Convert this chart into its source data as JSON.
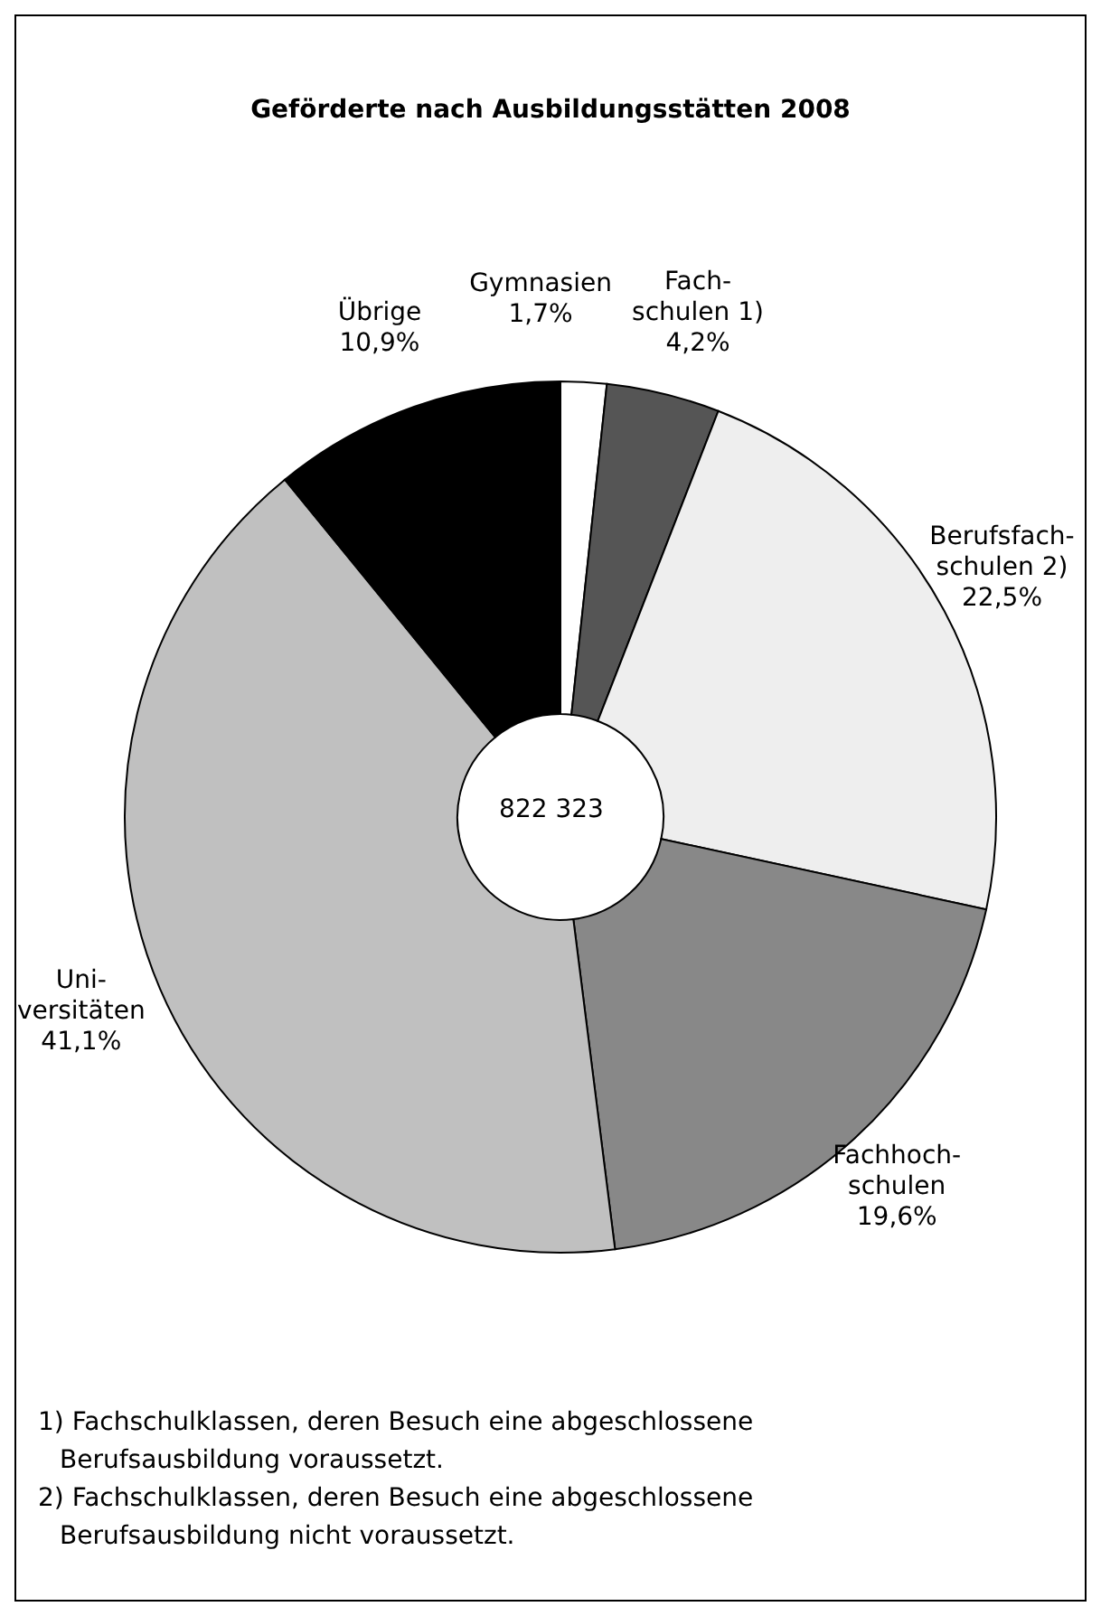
{
  "chart_data": {
    "type": "donut",
    "title": "Geförderte nach Ausbildungsstätten 2008",
    "categories": [
      "Gymnasien",
      "Fach-\nschulen 1)",
      "Berufsfach-\nschulen 2)",
      "Fachhoch-\nschulen",
      "Uni-\nversitäten",
      "Übrige"
    ],
    "values": [
      1.7,
      4.2,
      22.5,
      19.6,
      41.1,
      10.9
    ],
    "value_labels": [
      "1,7%",
      "4,2%",
      "22,5%",
      "19,6%",
      "41,1%",
      "10,9%"
    ],
    "colors": [
      "#ffffff",
      "#555555",
      "#eeeeee",
      "#888888",
      "#c0c0c0",
      "#000000"
    ],
    "legend": false,
    "annotations": [
      "822 323",
      "1) Fachschulklassen, deren Besuch eine abgeschlossene Berufsausbildung voraussetzt.",
      "2) Fachschulklassen, deren Besuch eine abgeschlossene Berufsausbildung nicht voraussetzt."
    ]
  }
}
